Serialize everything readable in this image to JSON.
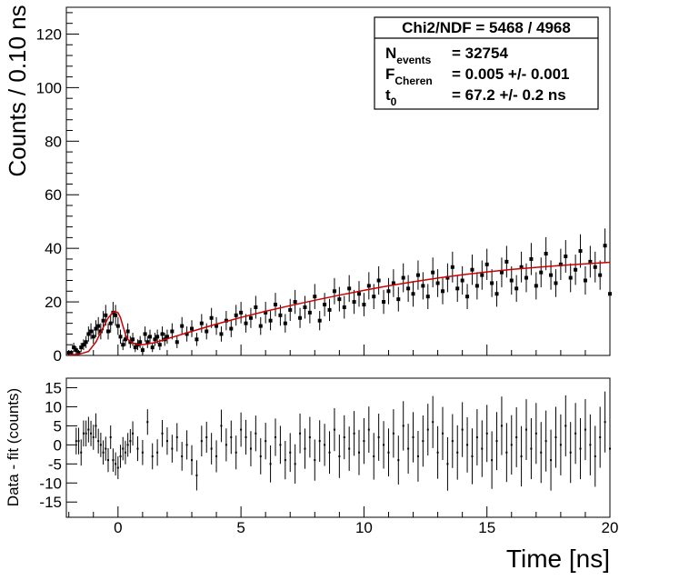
{
  "chart_data": [
    {
      "type": "scatter",
      "panel": "top",
      "ylabel": "Counts / 0.10 ns",
      "xlim": [
        -2.1,
        20
      ],
      "ylim": [
        0,
        130
      ],
      "yticks": [
        0,
        20,
        40,
        60,
        80,
        100,
        120
      ],
      "stats_box": {
        "title": "Chi2/NDF = 5468 / 4968",
        "rows": [
          {
            "label": "N",
            "sub": "events",
            "value": "= 32754"
          },
          {
            "label": "F",
            "sub": "Cheren",
            "value": "= 0.005 +/- 0.001"
          },
          {
            "label": "t",
            "sub": "0",
            "value": "= 67.2 +/- 0.2 ns"
          }
        ]
      },
      "series": [
        {
          "name": "data",
          "style": "points-with-errorbars",
          "color": "#000000",
          "x": [
            -2.0,
            -1.9,
            -1.8,
            -1.7,
            -1.6,
            -1.5,
            -1.4,
            -1.3,
            -1.2,
            -1.1,
            -1.0,
            -0.9,
            -0.8,
            -0.7,
            -0.6,
            -0.5,
            -0.4,
            -0.3,
            -0.2,
            -0.1,
            0.0,
            0.1,
            0.2,
            0.3,
            0.4,
            0.5,
            0.6,
            0.7,
            0.8,
            0.9,
            1.0,
            1.1,
            1.2,
            1.3,
            1.4,
            1.5,
            1.6,
            1.7,
            1.8,
            1.9,
            2.0,
            2.2,
            2.4,
            2.6,
            2.8,
            3.0,
            3.2,
            3.4,
            3.6,
            3.8,
            4.0,
            4.2,
            4.4,
            4.6,
            4.8,
            5.0,
            5.2,
            5.4,
            5.6,
            5.8,
            6.0,
            6.2,
            6.4,
            6.6,
            6.8,
            7.0,
            7.2,
            7.4,
            7.6,
            7.8,
            8.0,
            8.2,
            8.4,
            8.6,
            8.8,
            9.0,
            9.2,
            9.4,
            9.6,
            9.8,
            10.0,
            10.2,
            10.4,
            10.6,
            10.8,
            11.0,
            11.2,
            11.4,
            11.6,
            11.8,
            12.0,
            12.2,
            12.4,
            12.6,
            12.8,
            13.0,
            13.2,
            13.4,
            13.6,
            13.8,
            14.0,
            14.2,
            14.4,
            14.6,
            14.8,
            15.0,
            15.2,
            15.4,
            15.6,
            15.8,
            16.0,
            16.2,
            16.4,
            16.6,
            16.8,
            17.0,
            17.2,
            17.4,
            17.6,
            17.8,
            18.0,
            18.2,
            18.4,
            18.6,
            18.8,
            19.0,
            19.2,
            19.4,
            19.6,
            19.8,
            20.0
          ],
          "y": [
            1,
            1,
            3,
            2,
            1,
            3,
            4,
            5,
            8,
            9,
            7,
            10,
            11,
            9,
            13,
            15,
            9,
            12,
            16,
            15,
            11,
            7,
            4,
            6,
            9,
            5,
            6,
            3,
            4,
            5,
            2,
            8,
            5,
            7,
            3,
            6,
            7,
            4,
            8,
            6,
            7,
            9,
            5,
            11,
            8,
            10,
            6,
            12,
            9,
            14,
            11,
            8,
            13,
            10,
            15,
            16,
            12,
            14,
            18,
            11,
            16,
            13,
            19,
            15,
            12,
            17,
            20,
            14,
            18,
            16,
            22,
            13,
            19,
            17,
            24,
            21,
            18,
            25,
            20,
            23,
            19,
            26,
            22,
            28,
            20,
            24,
            27,
            21,
            29,
            25,
            23,
            30,
            26,
            22,
            31,
            27,
            24,
            29,
            33,
            25,
            28,
            22,
            32,
            26,
            30,
            34,
            27,
            23,
            31,
            35,
            28,
            25,
            33,
            29,
            36,
            26,
            31,
            38,
            30,
            27,
            34,
            37,
            29,
            32,
            39,
            28,
            35,
            33,
            30,
            41,
            23
          ]
        },
        {
          "name": "fit",
          "style": "line",
          "color": "#cc0000",
          "x": [
            -2.0,
            -1.6,
            -1.2,
            -0.9,
            -0.6,
            -0.4,
            -0.2,
            -0.1,
            0.0,
            0.1,
            0.2,
            0.3,
            0.4,
            0.6,
            0.8,
            1.0,
            1.5,
            2.0,
            3.0,
            4.0,
            5.0,
            6.0,
            7.0,
            8.0,
            9.0,
            10.0,
            11.0,
            12.0,
            13.0,
            14.0,
            15.0,
            16.0,
            17.0,
            18.0,
            19.0,
            20.0
          ],
          "y": [
            0.2,
            0.4,
            1.5,
            5.0,
            10.5,
            14.0,
            16.2,
            16.4,
            16.0,
            14.2,
            11.0,
            8.0,
            6.0,
            4.6,
            4.1,
            4.0,
            4.8,
            6.2,
            9.0,
            11.7,
            14.2,
            16.5,
            18.6,
            20.6,
            22.5,
            24.3,
            26.0,
            27.5,
            28.9,
            30.1,
            31.2,
            32.1,
            32.9,
            33.6,
            34.2,
            34.8
          ]
        }
      ]
    },
    {
      "type": "scatter",
      "panel": "bottom",
      "xlabel": "Time [ns]",
      "ylabel": "Data - fit (counts)",
      "xlim": [
        -2.1,
        20
      ],
      "ylim": [
        -19,
        17.5
      ],
      "xticks": [
        0,
        5,
        10,
        15,
        20
      ],
      "yticks": [
        -15,
        -10,
        -5,
        0,
        5,
        10,
        15
      ],
      "series": [
        {
          "name": "residuals",
          "style": "points-with-errorbars",
          "color": "#000000",
          "x": [
            -1.7,
            -1.6,
            -1.5,
            -1.4,
            -1.3,
            -1.2,
            -1.1,
            -1.0,
            -0.9,
            -0.8,
            -0.7,
            -0.6,
            -0.5,
            -0.4,
            -0.3,
            -0.2,
            -0.1,
            0.0,
            0.1,
            0.2,
            0.3,
            0.4,
            0.5,
            0.6,
            0.8,
            1.0,
            1.2,
            1.4,
            1.6,
            1.8,
            2.0,
            2.2,
            2.4,
            2.6,
            2.8,
            3.0,
            3.2,
            3.4,
            3.6,
            3.8,
            4.0,
            4.2,
            4.4,
            4.6,
            4.8,
            5.0,
            5.2,
            5.4,
            5.6,
            5.8,
            6.0,
            6.2,
            6.4,
            6.6,
            6.8,
            7.0,
            7.2,
            7.4,
            7.6,
            7.8,
            8.0,
            8.2,
            8.4,
            8.6,
            8.8,
            9.0,
            9.2,
            9.4,
            9.6,
            9.8,
            10.0,
            10.2,
            10.4,
            10.6,
            10.8,
            11.0,
            11.2,
            11.4,
            11.6,
            11.8,
            12.0,
            12.2,
            12.4,
            12.6,
            12.8,
            13.0,
            13.2,
            13.4,
            13.6,
            13.8,
            14.0,
            14.2,
            14.4,
            14.6,
            14.8,
            15.0,
            15.2,
            15.4,
            15.6,
            15.8,
            16.0,
            16.2,
            16.4,
            16.6,
            16.8,
            17.0,
            17.2,
            17.4,
            17.6,
            17.8,
            18.0,
            18.2,
            18.4,
            18.6,
            18.8,
            19.0,
            19.2,
            19.4,
            19.6,
            19.8,
            20.0
          ],
          "y": [
            1,
            1,
            -2,
            3,
            3,
            4,
            3,
            2,
            5,
            1,
            0,
            -2,
            -1,
            -4,
            2,
            -4,
            -5,
            -6,
            -3,
            -1,
            -2,
            0,
            1,
            3,
            -1,
            -2,
            6,
            -3,
            -2,
            3,
            1,
            -1,
            2,
            -3,
            0,
            -4,
            -8,
            1,
            2,
            -1,
            -3,
            5,
            0,
            2,
            -2,
            4,
            2,
            -1,
            3,
            -3,
            1,
            -5,
            2,
            0,
            -4,
            -2,
            -5,
            3,
            -1,
            2,
            -4,
            1,
            0,
            -2,
            4,
            -3,
            2,
            -1,
            3,
            -2,
            1,
            4,
            -3,
            2,
            0,
            -2,
            3,
            -4,
            5,
            -1,
            2,
            -3,
            1,
            4,
            6,
            -2,
            3,
            -5,
            1,
            -2,
            4,
            0,
            -3,
            2,
            -1,
            3,
            -4,
            1,
            5,
            -2,
            0,
            2,
            -3,
            4,
            -1,
            3,
            -2,
            1,
            -4,
            2,
            0,
            5,
            -2,
            3,
            -1,
            4,
            0,
            -3,
            2,
            6,
            -1
          ]
        }
      ]
    }
  ]
}
